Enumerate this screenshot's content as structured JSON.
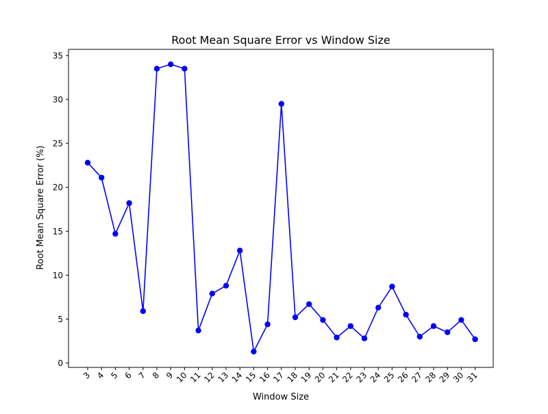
{
  "chart_data": {
    "type": "line",
    "title": "Root Mean Square Error vs Window Size",
    "xlabel": "Window Size",
    "ylabel": "Root Mean Square Error (%)",
    "x": [
      3,
      4,
      5,
      6,
      7,
      8,
      9,
      10,
      11,
      12,
      13,
      14,
      15,
      16,
      17,
      18,
      19,
      20,
      21,
      22,
      23,
      24,
      25,
      26,
      27,
      28,
      29,
      30,
      31
    ],
    "y": [
      22.8,
      21.1,
      14.7,
      18.2,
      5.9,
      33.5,
      34.0,
      33.5,
      3.7,
      7.9,
      8.8,
      12.8,
      1.3,
      4.4,
      29.5,
      5.2,
      6.7,
      4.9,
      2.9,
      4.2,
      2.8,
      6.3,
      8.7,
      5.5,
      3.0,
      4.2,
      3.5,
      4.9,
      2.7
    ],
    "ylim": [
      -0.5,
      35.7
    ],
    "yticks": [
      0,
      5,
      10,
      15,
      20,
      25,
      30,
      35
    ],
    "grid": false,
    "colors": {
      "line": "#0000ff",
      "marker": "#0000ff"
    }
  }
}
